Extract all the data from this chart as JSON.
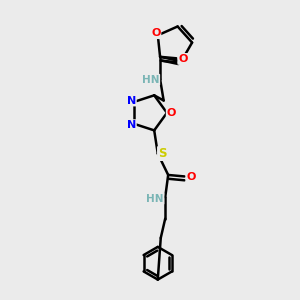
{
  "bg_color": "#ebebeb",
  "atom_colors": {
    "C": "#000000",
    "N": "#0000ff",
    "O": "#ff0000",
    "S": "#cccc00",
    "H": "#7ab5b5"
  },
  "bond_color": "#000000",
  "bond_width": 1.8,
  "fig_width": 3.0,
  "fig_height": 3.0,
  "dpi": 100,
  "xlim": [
    0,
    10
  ],
  "ylim": [
    0,
    10
  ]
}
